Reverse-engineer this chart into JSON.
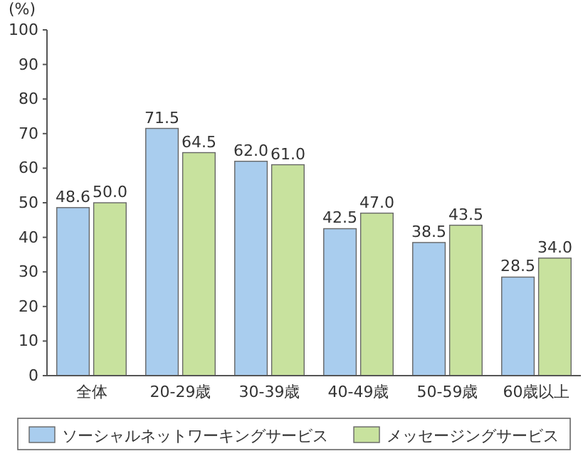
{
  "chart_data": {
    "type": "bar",
    "ylabel": "(%)",
    "categories": [
      "全体",
      "20-29歳",
      "30-39歳",
      "40-49歳",
      "50-59歳",
      "60歳以上"
    ],
    "series": [
      {
        "name": "ソーシャルネットワーキングサービス",
        "color": "#a9cdee",
        "values": [
          48.6,
          71.5,
          62.0,
          42.5,
          38.5,
          28.5
        ],
        "value_labels": [
          "48.6",
          "71.5",
          "62.0",
          "42.5",
          "38.5",
          "28.5"
        ]
      },
      {
        "name": "メッセージングサービス",
        "color": "#c8e29e",
        "values": [
          50.0,
          64.5,
          61.0,
          47.0,
          43.5,
          34.0
        ],
        "value_labels": [
          "50.0",
          "64.5",
          "61.0",
          "47.0",
          "43.5",
          "34.0"
        ]
      }
    ],
    "ylim": [
      0,
      100
    ],
    "yticks": [
      0,
      10,
      20,
      30,
      40,
      50,
      60,
      70,
      80,
      90,
      100
    ],
    "legend": "bottom",
    "grid": false
  }
}
